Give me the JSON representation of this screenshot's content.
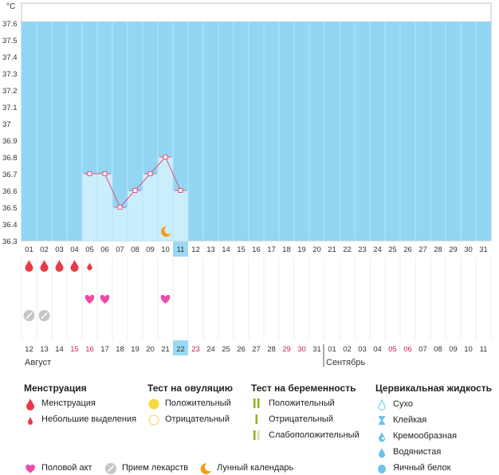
{
  "chart_data": {
    "type": "line",
    "unit_label": "°C",
    "ylim": [
      36.3,
      37.6
    ],
    "y_ticks": [
      "36.3",
      "36.4",
      "36.5",
      "36.6",
      "36.7",
      "36.8",
      "36.9",
      "37",
      "37.1",
      "37.2",
      "37.3",
      "37.4",
      "37.5",
      "37.6"
    ],
    "cycle_day_labels": [
      "01",
      "02",
      "03",
      "04",
      "05",
      "06",
      "07",
      "08",
      "09",
      "10",
      "11",
      "12",
      "13",
      "14",
      "15",
      "16",
      "17",
      "18",
      "19",
      "20",
      "21",
      "22",
      "23",
      "24",
      "25",
      "26",
      "27",
      "28",
      "29",
      "30",
      "31"
    ],
    "highlighted_cycle_day": "11",
    "series": [
      {
        "x_start_index": 4,
        "values": [
          36.7,
          36.7,
          36.5,
          36.6,
          36.7,
          36.8,
          36.6
        ]
      }
    ],
    "moon_day_index": 9,
    "menstruation_day_indices": [
      0,
      1,
      2,
      3
    ],
    "light_spotting_day_indices": [
      4
    ],
    "intercourse_day_indices": [
      4,
      5,
      9
    ],
    "medication_day_indices": [
      0,
      1
    ],
    "calendar_dates": [
      "12",
      "13",
      "14",
      "15",
      "16",
      "17",
      "18",
      "19",
      "20",
      "21",
      "22",
      "23",
      "24",
      "25",
      "26",
      "27",
      "28",
      "29",
      "30",
      "31",
      "01",
      "02",
      "03",
      "04",
      "05",
      "06",
      "07",
      "08",
      "09",
      "10",
      "11"
    ],
    "red_date_indices": [
      3,
      4,
      11,
      17,
      18,
      24,
      25
    ],
    "highlighted_date_index": 10,
    "month_labels": [
      "Август",
      "Сентябрь"
    ],
    "colors": {
      "plot_bg": "#93d6f3",
      "fill": "#cbeefc",
      "line": "#e2507a",
      "highlight": "#9ad9f3",
      "menstruation": "#e73a48",
      "intercourse": "#ee4aa6",
      "medication": "#c6c6c6",
      "moon": "#f59b1c",
      "ovulation_positive": "#f8d83a",
      "pregnancy_positive": "#8cb41e",
      "pregnancy_weak": "#cfe39a",
      "fluid": "#6cc2ea",
      "red_date": "#d0205a"
    }
  },
  "legend": {
    "menstruation": {
      "title": "Менструация",
      "items": [
        {
          "label": "Менструация",
          "icon": "blood-drop-icon"
        },
        {
          "label": "Небольшие выделения",
          "icon": "small-blood-drop-icon"
        }
      ]
    },
    "ovulation": {
      "title": "Тест на овуляцию",
      "items": [
        {
          "label": "Положительный",
          "icon": "filled-circle-icon"
        },
        {
          "label": "Отрицательный",
          "icon": "empty-circle-icon"
        }
      ]
    },
    "pregnancy": {
      "title": "Тест на беременность",
      "items": [
        {
          "label": "Положительный",
          "icon": "two-stripes-icon"
        },
        {
          "label": "Отрицательный",
          "icon": "one-stripe-icon"
        },
        {
          "label": "Слабоположительный",
          "icon": "faint-stripes-icon"
        }
      ]
    },
    "cervical": {
      "title": "Цервикальная жидкость",
      "items": [
        {
          "label": "Сухо",
          "icon": "drop-outline-icon"
        },
        {
          "label": "Клейкая",
          "icon": "hourglass-icon"
        },
        {
          "label": "Кремообразная",
          "icon": "cream-drop-icon"
        },
        {
          "label": "Водянистая",
          "icon": "water-drop-icon"
        },
        {
          "label": "Яичный белок",
          "icon": "egg-white-drop-icon"
        }
      ]
    },
    "bottom": [
      {
        "label": "Половой акт",
        "icon": "heart-icon"
      },
      {
        "label": "Прием лекарств",
        "icon": "pill-icon"
      },
      {
        "label": "Лунный календарь",
        "icon": "moon-icon"
      }
    ]
  }
}
